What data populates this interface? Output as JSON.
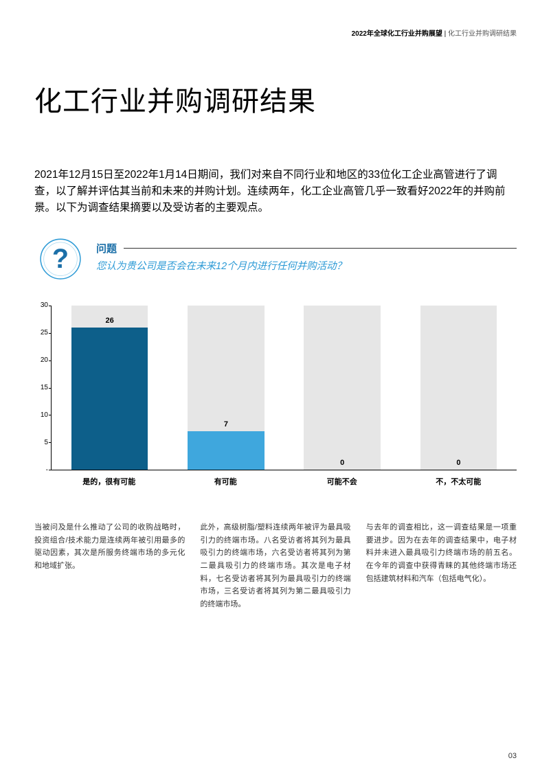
{
  "header": {
    "bold": "2022年全球化工行业并购展望",
    "separator": " | ",
    "light": "化工行业并购调研结果"
  },
  "title": "化工行业并购调研结果",
  "intro": "2021年12月15日至2022年1月14日期间，我们对来自不同行业和地区的33位化工企业高管进行了调查，以了解并评估其当前和未来的并购计划。连续两年，化工企业高管几乎一致看好2022年的并购前景。以下为调查结果摘要以及受访者的主要观点。",
  "question": {
    "label": "问题",
    "text": "您认为贵公司是否会在未来12个月内进行任何并购活动？"
  },
  "chart": {
    "type": "bar",
    "ymax": 30,
    "ytick_step": 5,
    "yticks": [
      "30",
      "25",
      "20",
      "15",
      "10",
      "5",
      "-"
    ],
    "background_color": "#ffffff",
    "bar_bg_color": "#e6e6e6",
    "categories": [
      "是的，很有可能",
      "有可能",
      "可能不会",
      "不，不太可能"
    ],
    "values": [
      26,
      7,
      0,
      0
    ],
    "bar_colors": [
      "#0d5f8a",
      "#3fa7dd",
      "#3fa7dd",
      "#3fa7dd"
    ],
    "label_fontsize": 11,
    "value_fontsize": 11
  },
  "body": {
    "col1": "当被问及是什么推动了公司的收购战略时，投资组合/技术能力是连续两年被引用最多的驱动因素，其次是所服务终端市场的多元化和地域扩张。",
    "col2": "此外，高级树脂/塑料连续两年被评为最具吸引力的终端市场。八名受访者将其列为最具吸引力的终端市场，六名受访者将其列为第二最具吸引力的终端市场。其次是电子材料，七名受访者将其列为最具吸引力的终端市场，三名受访者将其列为第二最具吸引力的终端市场。",
    "col3": "与去年的调查相比，这一调查结果是一项重要进步。因为在去年的调查结果中，电子材料并未进入最具吸引力终端市场的前五名。在今年的调查中获得青睐的其他终端市场还包括建筑材料和汽车（包括电气化）。"
  },
  "pageNumber": "03",
  "colors": {
    "accent_dark": "#1b6fa8",
    "accent_light": "#2e9bd6",
    "text": "#000000",
    "body_text": "#333333"
  }
}
